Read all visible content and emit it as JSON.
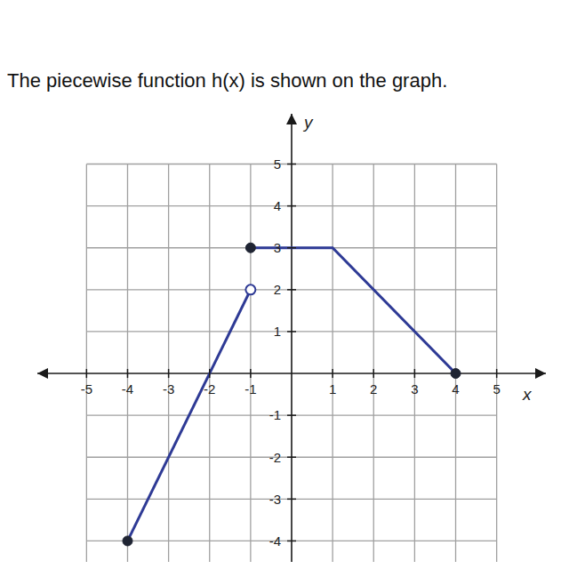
{
  "chart_data": {
    "type": "line",
    "title": "The piecewise function h(x) is shown on the graph.",
    "x_label": "x",
    "y_label": "y",
    "xlim": [
      -6.2,
      6.2
    ],
    "ylim": [
      -4.5,
      6.2
    ],
    "xticks": [
      -5,
      -4,
      -3,
      -2,
      -1,
      1,
      2,
      3,
      4,
      5
    ],
    "yticks": [
      -4,
      -3,
      -2,
      -1,
      1,
      2,
      3,
      4,
      5
    ],
    "grid": true,
    "series": [
      {
        "type": "line",
        "color": "#2e3a95",
        "x": [
          -4,
          -1
        ],
        "values": [
          -4,
          2
        ]
      },
      {
        "type": "line",
        "color": "#2e3a95",
        "x": [
          -1,
          1,
          4
        ],
        "values": [
          3,
          3,
          0
        ]
      },
      {
        "type": "scatter",
        "marker": "filled",
        "color": "#1f2433",
        "x": [
          -4,
          -1,
          4
        ],
        "values": [
          -4,
          3,
          0
        ]
      },
      {
        "type": "scatter",
        "marker": "open",
        "color": "#2e3a95",
        "x": [
          -1
        ],
        "values": [
          2
        ]
      }
    ]
  }
}
